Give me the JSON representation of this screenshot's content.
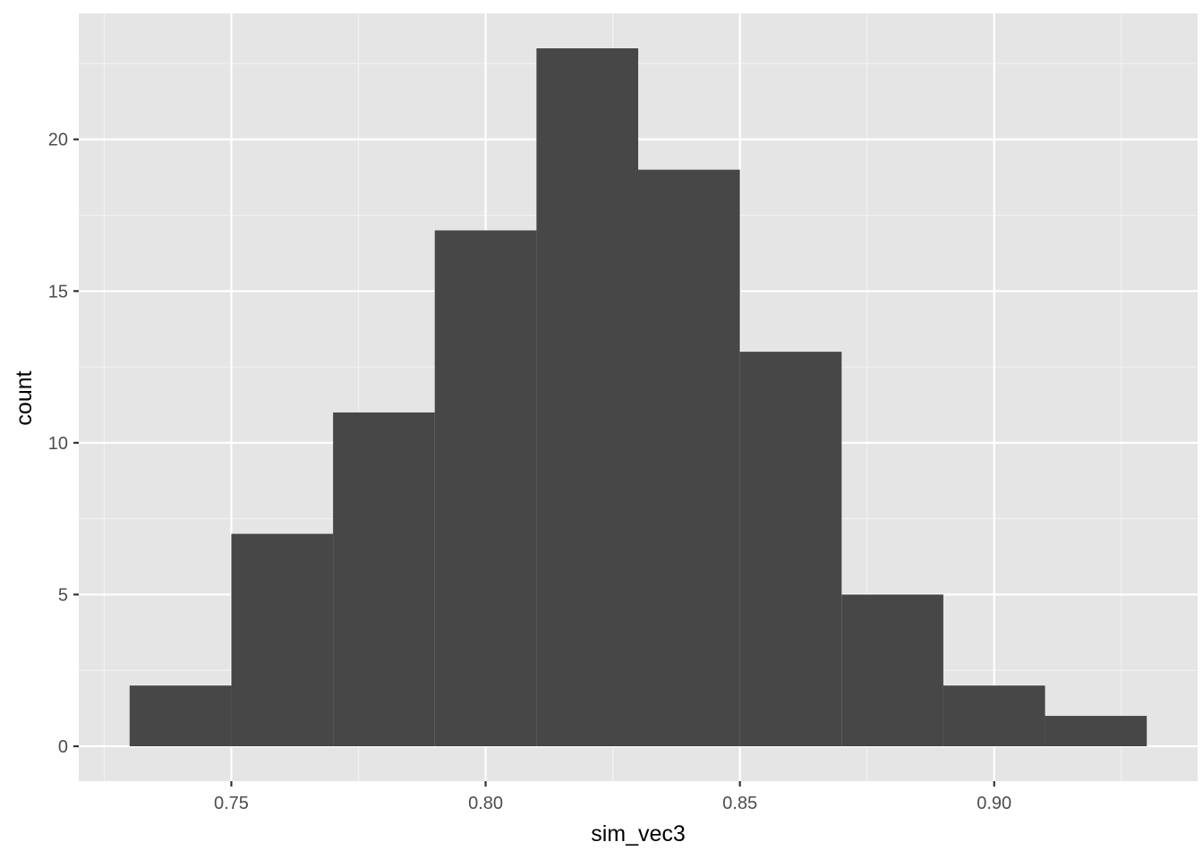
{
  "chart_data": {
    "type": "bar",
    "subtype": "histogram",
    "title": "",
    "xlabel": "sim_vec3",
    "ylabel": "count",
    "bin_width": 0.02,
    "bins": [
      {
        "x0": 0.73,
        "x1": 0.75,
        "count": 2
      },
      {
        "x0": 0.75,
        "x1": 0.77,
        "count": 7
      },
      {
        "x0": 0.77,
        "x1": 0.79,
        "count": 11
      },
      {
        "x0": 0.79,
        "x1": 0.81,
        "count": 17
      },
      {
        "x0": 0.81,
        "x1": 0.83,
        "count": 23
      },
      {
        "x0": 0.83,
        "x1": 0.85,
        "count": 19
      },
      {
        "x0": 0.85,
        "x1": 0.87,
        "count": 13
      },
      {
        "x0": 0.87,
        "x1": 0.89,
        "count": 5
      },
      {
        "x0": 0.89,
        "x1": 0.91,
        "count": 2
      },
      {
        "x0": 0.91,
        "x1": 0.93,
        "count": 1
      }
    ],
    "xlim": [
      0.72,
      0.94
    ],
    "ylim": [
      -1.15,
      24.15
    ],
    "x_ticks": [
      0.75,
      0.8,
      0.85,
      0.9
    ],
    "x_tick_labels": [
      "0.75",
      "0.80",
      "0.85",
      "0.90"
    ],
    "x_minor_ticks": [
      0.725,
      0.775,
      0.825,
      0.875,
      0.925
    ],
    "y_ticks": [
      0,
      5,
      10,
      15,
      20
    ],
    "y_tick_labels": [
      "0",
      "5",
      "10",
      "15",
      "20"
    ],
    "y_minor_ticks": [
      2.5,
      7.5,
      12.5,
      17.5,
      22.5
    ],
    "grid": true,
    "legend": "none",
    "colors": {
      "bar_fill": "#474747",
      "panel_background": "#e5e5e5",
      "grid_major": "#ffffff",
      "grid_minor": "#f2f2f2",
      "tick_mark": "#333333"
    }
  }
}
